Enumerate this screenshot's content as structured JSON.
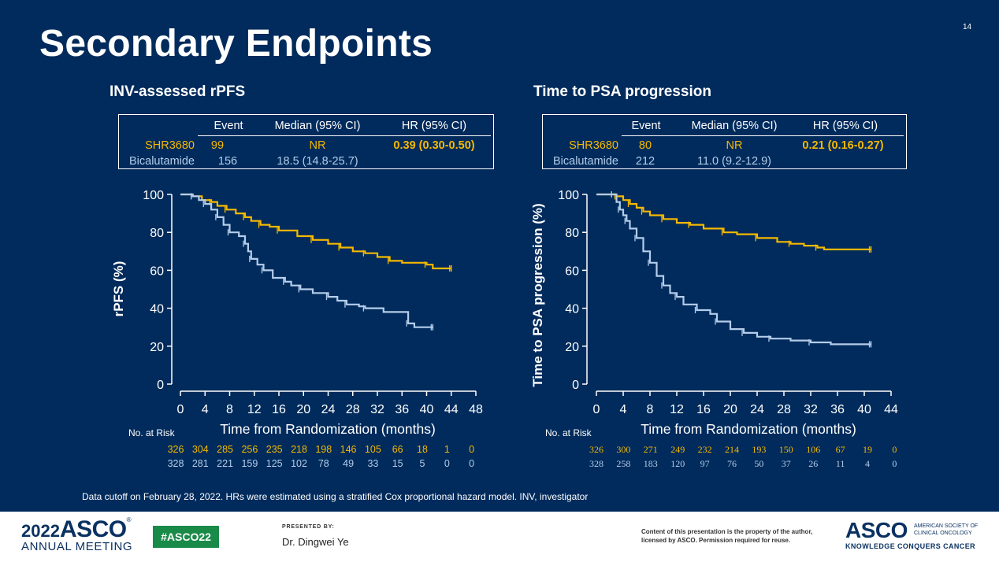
{
  "slide": {
    "title": "Secondary Endpoints",
    "page_number": "14",
    "footnote": "Data cutoff on February 28, 2022. HRs were estimated using a stratified Cox proportional hazard model. INV, investigator"
  },
  "panels": [
    {
      "heading": "INV-assessed rPFS",
      "table": {
        "headers": [
          "Event",
          "Median (95% CI)",
          "HR (95% CI)"
        ],
        "rows": [
          {
            "arm": "SHR3680",
            "event": "99",
            "median": "NR",
            "hr": "0.39 (0.30-0.50)"
          },
          {
            "arm": "Bicalutamide",
            "event": "156",
            "median": "18.5 (14.8-25.7)",
            "hr": ""
          }
        ]
      },
      "risk": {
        "label": "No. at Risk",
        "shr": [
          "326",
          "304",
          "285",
          "256",
          "235",
          "218",
          "198",
          "146",
          "105",
          "66",
          "18",
          "1",
          "0"
        ],
        "bic": [
          "328",
          "281",
          "221",
          "159",
          "125",
          "102",
          "78",
          "49",
          "33",
          "15",
          "5",
          "0",
          "0"
        ]
      }
    },
    {
      "heading": "Time to PSA progression",
      "table": {
        "headers": [
          "Event",
          "Median (95% CI)",
          "HR (95% CI)"
        ],
        "rows": [
          {
            "arm": "SHR3680",
            "event": "80",
            "median": "NR",
            "hr": "0.21 (0.16-0.27)"
          },
          {
            "arm": "Bicalutamide",
            "event": "212",
            "median": "11.0 (9.2-12.9)",
            "hr": ""
          }
        ]
      },
      "risk": {
        "label": "No. at Risk",
        "shr": [
          "326",
          "300",
          "271",
          "249",
          "232",
          "214",
          "193",
          "150",
          "106",
          "67",
          "19",
          "0"
        ],
        "bic": [
          "328",
          "258",
          "183",
          "120",
          "97",
          "76",
          "50",
          "37",
          "26",
          "11",
          "4",
          "0"
        ]
      }
    }
  ],
  "chart_data": [
    {
      "type": "line",
      "title": "INV-assessed rPFS",
      "xlabel": "Time from Randomization (months)",
      "ylabel": "rPFS (%)",
      "xlim": [
        0,
        48
      ],
      "ylim": [
        0,
        100
      ],
      "xticks": [
        0,
        4,
        8,
        12,
        16,
        20,
        24,
        28,
        32,
        36,
        40,
        44,
        48
      ],
      "yticks": [
        0,
        20,
        40,
        60,
        80,
        100
      ],
      "series": [
        {
          "name": "SHR3680",
          "color": "#f5b800",
          "x": [
            0,
            2,
            3.5,
            5,
            6,
            7.5,
            9,
            10.5,
            11.5,
            13,
            14.5,
            16,
            19,
            21.5,
            24,
            26,
            28,
            30,
            32,
            34,
            36,
            40,
            41,
            44
          ],
          "y": [
            100,
            99,
            97,
            96,
            94,
            92,
            90,
            88,
            86,
            84,
            83,
            81,
            78,
            76,
            74,
            72,
            70,
            69,
            67,
            65,
            64,
            63,
            61,
            61
          ]
        },
        {
          "name": "Bicalutamide",
          "color": "#b4cdea",
          "x": [
            0,
            2,
            3,
            4,
            5,
            6,
            7,
            8,
            9.5,
            10.5,
            11,
            11.5,
            12.5,
            13.5,
            15,
            17,
            18,
            19.5,
            21.5,
            24,
            25.5,
            27,
            29,
            30,
            33,
            37,
            38,
            41
          ],
          "y": [
            100,
            99,
            97,
            95,
            92,
            88,
            84,
            80,
            78,
            74,
            70,
            66,
            63,
            60,
            56,
            54,
            52,
            50,
            48,
            46,
            44,
            42,
            41,
            40,
            38,
            32,
            30,
            30
          ]
        }
      ]
    },
    {
      "type": "line",
      "title": "Time to PSA progression",
      "xlabel": "Time from Randomization (months)",
      "ylabel": "Time to PSA progression (%)",
      "xlim": [
        0,
        44
      ],
      "ylim": [
        0,
        100
      ],
      "xticks": [
        0,
        4,
        8,
        12,
        16,
        20,
        24,
        28,
        32,
        36,
        40,
        44
      ],
      "yticks": [
        0,
        20,
        40,
        60,
        80,
        100
      ],
      "series": [
        {
          "name": "SHR3680",
          "color": "#f5b800",
          "x": [
            0,
            3,
            4,
            5,
            6,
            7,
            8,
            10,
            12,
            14,
            16,
            19,
            21,
            24,
            27,
            29,
            31,
            33,
            34,
            41
          ],
          "y": [
            100,
            99,
            97,
            95,
            93,
            91,
            89,
            87,
            85,
            84,
            82,
            80,
            79,
            77,
            75,
            74,
            73,
            72,
            71,
            71
          ]
        },
        {
          "name": "Bicalutamide",
          "color": "#b4cdea",
          "x": [
            0,
            2.5,
            3,
            3.5,
            4,
            4.5,
            5,
            6,
            7,
            8,
            9,
            10,
            11,
            12,
            13,
            15,
            17,
            18,
            20,
            22,
            24,
            26,
            29,
            32,
            35,
            41
          ],
          "y": [
            100,
            100,
            96,
            92,
            89,
            86,
            82,
            77,
            70,
            64,
            57,
            52,
            48,
            46,
            42,
            39,
            37,
            33,
            29,
            27,
            25,
            24,
            23,
            22,
            21,
            21
          ]
        }
      ]
    }
  ],
  "footer": {
    "year": "2022",
    "brand": "ASCO",
    "tm": "®",
    "meeting": "ANNUAL MEETING",
    "hashtag": "#ASCO22",
    "presented_by": "PRESENTED BY:",
    "presenter": "Dr. Dingwei Ye",
    "content_notice": "Content of this presentation is the property of the author, licensed by ASCO. Permission required for reuse.",
    "org_brand": "ASCO",
    "org_line1": "AMERICAN SOCIETY OF",
    "org_line2": "CLINICAL ONCOLOGY",
    "tagline": "KNOWLEDGE CONQUERS CANCER"
  }
}
